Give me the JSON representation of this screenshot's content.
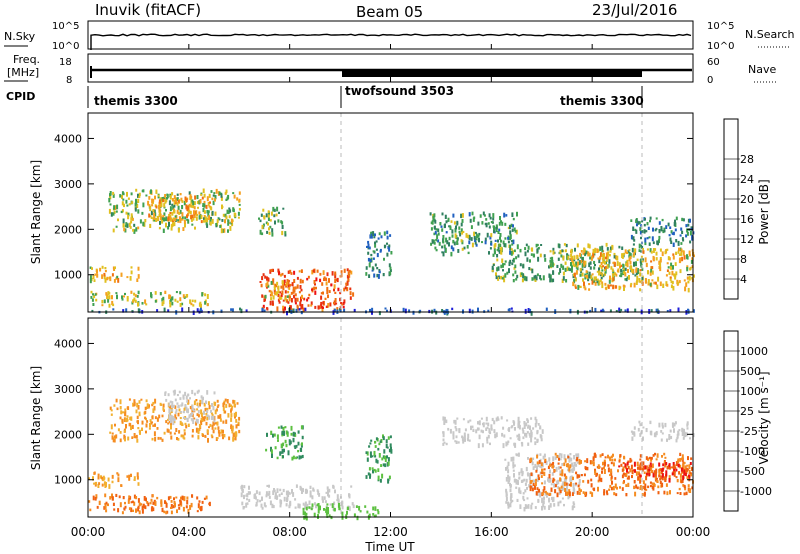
{
  "header": {
    "station": "Inuvik (fitACF)",
    "beam": "Beam 05",
    "date": "23/Jul/2016"
  },
  "noise_panel": {
    "left_label": "N.Sky",
    "right_label": "N.Search",
    "left_ticks": [
      "10^5",
      "10^0"
    ],
    "right_ticks": [
      "10^5",
      "10^0"
    ]
  },
  "freq_panel": {
    "left_label_1": "Freq.",
    "left_label_2": "[MHz]",
    "left_ticks": [
      "18",
      "8"
    ],
    "right_label": "Nave",
    "right_ticks": [
      "60",
      "0"
    ]
  },
  "cpid": {
    "label": "CPID",
    "segments": [
      {
        "name": "themis 3300",
        "start_hour": 0,
        "end_hour": 10
      },
      {
        "name": "twofsound 3503",
        "start_hour": 10,
        "end_hour": 22
      },
      {
        "name": "themis 3300",
        "start_hour": 22,
        "end_hour": 24
      }
    ]
  },
  "x_axis": {
    "label": "Time UT",
    "ticks": [
      "00:00",
      "04:00",
      "08:00",
      "12:00",
      "16:00",
      "20:00",
      "00:00"
    ],
    "range_hours": [
      0,
      24
    ]
  },
  "y_axis": {
    "label": "Slant Range [km]",
    "ticks": [
      "1000",
      "2000",
      "3000",
      "4000"
    ],
    "range_km": [
      180,
      4560
    ]
  },
  "colorbars": {
    "power": {
      "label": "Power [dB]",
      "ticks": [
        "4",
        "8",
        "12",
        "16",
        "20",
        "24",
        "28"
      ],
      "colors": [
        "#1f1fd8",
        "#2060c0",
        "#2f7f5f",
        "#3fa050",
        "#e0c020",
        "#f5a020",
        "#f07010",
        "#e83010",
        "#ee1010"
      ]
    },
    "velocity": {
      "label": "Velocity [m s⁻¹]",
      "ticks": [
        "1000",
        "500",
        "100",
        "25",
        "-25",
        "-100",
        "-500",
        "-1000"
      ],
      "colors": [
        "#1f36b0",
        "#2a6fa8",
        "#2f8a5e",
        "#5cc040",
        "#c8c8c8",
        "#f2b030",
        "#f58c20",
        "#f06010",
        "#ec1010"
      ]
    }
  },
  "chart_data": [
    {
      "type": "line",
      "title": "N.Sky / N.Search",
      "x_unit": "hours UT",
      "description_series": [
        {
          "name": "N.Sky",
          "x": [
            0,
            2,
            4,
            6,
            8,
            10,
            12,
            14,
            16,
            18,
            20,
            22,
            24
          ],
          "values": [
            30000,
            30000,
            30000,
            30000,
            25000,
            30000,
            30000,
            30000,
            30000,
            30000,
            30000,
            30000,
            30000
          ]
        }
      ],
      "ylim": [
        1,
        100000
      ],
      "scale": "log"
    },
    {
      "type": "line",
      "title": "Freq. / Nave",
      "series": [
        {
          "name": "Freq.",
          "x": [
            0,
            4,
            8,
            10,
            12,
            16,
            20,
            22,
            24
          ],
          "values": [
            11,
            11,
            11,
            11,
            11,
            11,
            11,
            11,
            11
          ]
        },
        {
          "name": "Nave",
          "x": [
            0,
            10,
            10.01,
            22,
            22.01,
            24
          ],
          "values": [
            25,
            25,
            5,
            5,
            25,
            25
          ]
        }
      ]
    },
    {
      "type": "heatmap",
      "title": "Power [dB]",
      "x_unit": "hours UT",
      "y_unit": "km",
      "xlim": [
        0,
        24
      ],
      "ylim": [
        180,
        4560
      ],
      "blobs": [
        {
          "t0": 0.0,
          "t1": 2.0,
          "r0": 900,
          "r1": 1200,
          "level": 20
        },
        {
          "t0": 0.0,
          "t1": 4.8,
          "r0": 350,
          "r1": 650,
          "level": 18
        },
        {
          "t0": 0.8,
          "t1": 6.0,
          "r0": 2000,
          "r1": 2900,
          "level": 16
        },
        {
          "t0": 2.3,
          "t1": 4.8,
          "r0": 2200,
          "r1": 2800,
          "level": 22
        },
        {
          "t0": 6.7,
          "t1": 7.8,
          "r0": 1900,
          "r1": 2500,
          "level": 14
        },
        {
          "t0": 6.8,
          "t1": 10.5,
          "r0": 250,
          "r1": 1150,
          "level": 28
        },
        {
          "t0": 7.0,
          "t1": 8.0,
          "r0": 500,
          "r1": 900,
          "level": 20
        },
        {
          "t0": 11.0,
          "t1": 12.0,
          "r0": 1000,
          "r1": 2000,
          "level": 10
        },
        {
          "t0": 13.5,
          "t1": 17.0,
          "r0": 1500,
          "r1": 2400,
          "level": 12
        },
        {
          "t0": 16.0,
          "t1": 22.0,
          "r0": 900,
          "r1": 1700,
          "level": 14
        },
        {
          "t0": 19.0,
          "t1": 24.0,
          "r0": 700,
          "r1": 1600,
          "level": 20
        },
        {
          "t0": 21.5,
          "t1": 24.0,
          "r0": 1700,
          "r1": 2300,
          "level": 10
        },
        {
          "t0": 0.0,
          "t1": 24.0,
          "r0": 200,
          "r1": 280,
          "level": 6
        }
      ]
    },
    {
      "type": "heatmap",
      "title": "Velocity [m s⁻¹]",
      "x_unit": "hours UT",
      "y_unit": "km",
      "xlim": [
        0,
        24
      ],
      "ylim": [
        180,
        4560
      ],
      "blobs": [
        {
          "t0": 0.0,
          "t1": 4.8,
          "r0": 300,
          "r1": 700,
          "level": -500
        },
        {
          "t0": 0.0,
          "t1": 2.0,
          "r0": 900,
          "r1": 1200,
          "level": -100
        },
        {
          "t0": 0.8,
          "t1": 6.0,
          "r0": 1900,
          "r1": 2800,
          "level": -100
        },
        {
          "t0": 3.0,
          "t1": 5.0,
          "r0": 2300,
          "r1": 3000,
          "level": 0
        },
        {
          "t0": 6.0,
          "t1": 10.5,
          "r0": 400,
          "r1": 900,
          "level": 0
        },
        {
          "t0": 7.0,
          "t1": 8.5,
          "r0": 1500,
          "r1": 2200,
          "level": 100
        },
        {
          "t0": 8.5,
          "t1": 11.5,
          "r0": 200,
          "r1": 500,
          "level": 50
        },
        {
          "t0": 11.0,
          "t1": 12.0,
          "r0": 1000,
          "r1": 2000,
          "level": 100
        },
        {
          "t0": 14.0,
          "t1": 18.0,
          "r0": 1800,
          "r1": 2400,
          "level": 0
        },
        {
          "t0": 16.5,
          "t1": 19.5,
          "r0": 400,
          "r1": 1600,
          "level": 0
        },
        {
          "t0": 17.5,
          "t1": 24.0,
          "r0": 700,
          "r1": 1600,
          "level": -500
        },
        {
          "t0": 21.0,
          "t1": 24.0,
          "r0": 1000,
          "r1": 1400,
          "level": -1000
        },
        {
          "t0": 21.5,
          "t1": 24.0,
          "r0": 1900,
          "r1": 2300,
          "level": 0
        }
      ]
    }
  ]
}
